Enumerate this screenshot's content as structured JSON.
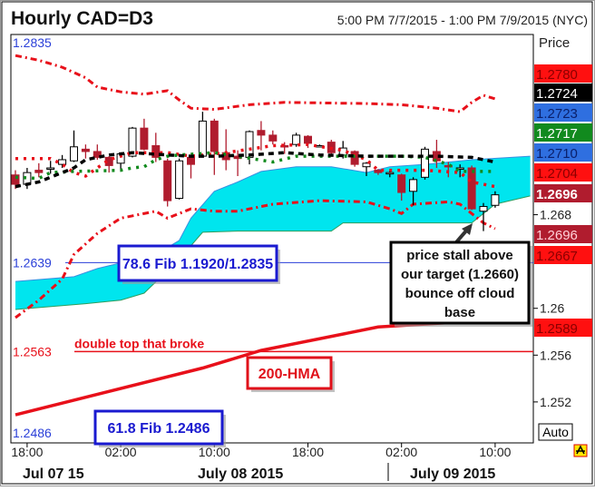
{
  "header": {
    "title": "Hourly CAD=D3",
    "range": "5:00 PM 7/7/2015 - 1:00 PM 7/9/2015 (NYC)",
    "price_label": "Price",
    "auto_button": "Auto"
  },
  "chart_data": {
    "type": "candlestick",
    "ylim": [
      1.2485,
      1.2834
    ],
    "xlim": [
      "7/7 17:00",
      "7/9 13:00"
    ],
    "yticks": [
      "1.268",
      "1.26",
      "1.256",
      "1.252"
    ],
    "xticks": [
      {
        "t": "7/7 18:00",
        "label": "18:00"
      },
      {
        "t": "7/8 02:00",
        "label": "02:00"
      },
      {
        "t": "7/8 10:00",
        "label": "10:00"
      },
      {
        "t": "7/8 18:00",
        "label": "18:00"
      },
      {
        "t": "7/9 02:00",
        "label": "02:00"
      },
      {
        "t": "7/9 10:00",
        "label": "10:00"
      }
    ],
    "date_labels": [
      "Jul 07 15",
      "July 08 2015",
      "July 09 2015"
    ],
    "colors": {
      "down": "#b01c2e",
      "up": "#ffffff",
      "cloud": "#00e5ee",
      "cloud_top": "#3a8fe0",
      "cloud_bottom": "#2e9e5e",
      "bollinger": "#e8101a",
      "hma": "#e8101a",
      "fib": "#2a3fd8"
    },
    "candles": [
      [
        "7/7 17:00",
        1.2714,
        1.2718,
        1.2702,
        1.2706
      ],
      [
        "7/7 18:00",
        1.2706,
        1.272,
        1.2702,
        1.2716
      ],
      [
        "7/7 19:00",
        1.2718,
        1.2724,
        1.2712,
        1.2716
      ],
      [
        "7/7 20:00",
        1.2719,
        1.2726,
        1.2715,
        1.272
      ],
      [
        "7/7 21:00",
        1.2723,
        1.2731,
        1.272,
        1.2727
      ],
      [
        "7/7 22:00",
        1.2726,
        1.2752,
        1.2725,
        1.2738
      ],
      [
        "7/7 23:00",
        1.2736,
        1.274,
        1.2728,
        1.2734
      ],
      [
        "7/8 00:00",
        1.2734,
        1.274,
        1.2727,
        1.2729
      ],
      [
        "7/8 01:00",
        1.2729,
        1.273,
        1.2716,
        1.2722
      ],
      [
        "7/8 02:00",
        1.2724,
        1.2733,
        1.2718,
        1.2732
      ],
      [
        "7/8 03:00",
        1.273,
        1.2755,
        1.2729,
        1.2754
      ],
      [
        "7/8 04:00",
        1.2754,
        1.2762,
        1.2735,
        1.2736
      ],
      [
        "7/8 05:00",
        1.2739,
        1.275,
        1.2725,
        1.2729
      ],
      [
        "7/8 06:00",
        1.2726,
        1.2728,
        1.2687,
        1.2692
      ],
      [
        "7/8 07:00",
        1.2694,
        1.2728,
        1.2693,
        1.2726
      ],
      [
        "7/8 08:00",
        1.2729,
        1.273,
        1.2711,
        1.2723
      ],
      [
        "7/8 09:00",
        1.273,
        1.2768,
        1.2729,
        1.276
      ],
      [
        "7/8 10:00",
        1.276,
        1.2762,
        1.2714,
        1.2734
      ],
      [
        "7/8 11:00",
        1.2733,
        1.2753,
        1.2718,
        1.2727
      ],
      [
        "7/8 12:00",
        1.273,
        1.2735,
        1.2713,
        1.2728
      ],
      [
        "7/8 13:00",
        1.2729,
        1.2752,
        1.2723,
        1.2751
      ],
      [
        "7/8 14:00",
        1.2752,
        1.276,
        1.2735,
        1.2748
      ],
      [
        "7/8 15:00",
        1.2748,
        1.2752,
        1.274,
        1.2743
      ],
      [
        "7/8 16:00",
        1.2739,
        1.2742,
        1.2732,
        1.2738
      ],
      [
        "7/8 17:00",
        1.274,
        1.275,
        1.2738,
        1.2748
      ],
      [
        "7/8 18:00",
        1.2747,
        1.2748,
        1.2737,
        1.2741
      ],
      [
        "7/8 19:00",
        1.2739,
        1.274,
        1.2738,
        1.2739
      ],
      [
        "7/8 20:00",
        1.2742,
        1.2744,
        1.273,
        1.2733
      ],
      [
        "7/8 21:00",
        1.2731,
        1.2743,
        1.2728,
        1.2737
      ],
      [
        "7/8 22:00",
        1.2734,
        1.2735,
        1.2721,
        1.2723
      ],
      [
        "7/8 23:00",
        1.2721,
        1.2725,
        1.2713,
        1.2724
      ],
      [
        "7/9 00:00",
        1.2718,
        1.2719,
        1.2714,
        1.2716
      ],
      [
        "7/9 01:00",
        1.2716,
        1.2718,
        1.2712,
        1.2716
      ],
      [
        "7/9 02:00",
        1.2714,
        1.2715,
        1.2692,
        1.2699
      ],
      [
        "7/9 03:00",
        1.27,
        1.2712,
        1.2688,
        1.271
      ],
      [
        "7/9 04:00",
        1.2712,
        1.2738,
        1.271,
        1.2736
      ],
      [
        "7/9 05:00",
        1.2734,
        1.2744,
        1.272,
        1.2726
      ],
      [
        "7/9 06:00",
        1.2722,
        1.2725,
        1.2712,
        1.2721
      ],
      [
        "7/9 07:00",
        1.272,
        1.2723,
        1.2712,
        1.272
      ],
      [
        "7/9 08:00",
        1.272,
        1.2722,
        1.2684,
        1.2685
      ],
      [
        "7/9 09:00",
        1.2683,
        1.269,
        1.2666,
        1.2687
      ],
      [
        "7/9 10:00",
        1.2688,
        1.27,
        1.2686,
        1.2697
      ]
    ],
    "cloud_top": [
      [
        "7/7 17:00",
        1.2623
      ],
      [
        "7/7 22:00",
        1.2627
      ],
      [
        "7/8 00:00",
        1.2634
      ],
      [
        "7/8 05:00",
        1.2646
      ],
      [
        "7/8 07:00",
        1.2658
      ],
      [
        "7/8 08:00",
        1.2677
      ],
      [
        "7/8 10:00",
        1.27
      ],
      [
        "7/8 12:00",
        1.2708
      ],
      [
        "7/8 14:00",
        1.2717
      ],
      [
        "7/8 17:00",
        1.2721
      ],
      [
        "7/8 20:00",
        1.2721
      ],
      [
        "7/8 23:00",
        1.2716
      ],
      [
        "7/9 01:00",
        1.2721
      ],
      [
        "7/9 04:00",
        1.2723
      ],
      [
        "7/9 08:00",
        1.2727
      ],
      [
        "7/9 13:00",
        1.273
      ]
    ],
    "cloud_bottom": [
      [
        "7/7 17:00",
        1.2599
      ],
      [
        "7/7 23:00",
        1.2604
      ],
      [
        "7/8 02:00",
        1.2607
      ],
      [
        "7/8 04:00",
        1.2613
      ],
      [
        "7/8 07:00",
        1.2642
      ],
      [
        "7/8 09:00",
        1.2665
      ],
      [
        "7/8 12:00",
        1.2666
      ],
      [
        "7/8 18:00",
        1.2666
      ],
      [
        "7/8 20:00",
        1.2666
      ],
      [
        "7/8 21:00",
        1.2673
      ],
      [
        "7/9 08:00",
        1.2673
      ],
      [
        "7/9 10:00",
        1.2689
      ],
      [
        "7/9 13:00",
        1.2696
      ]
    ],
    "bollinger_upper": [
      [
        "7/7 17:00",
        1.2816
      ],
      [
        "7/7 19:00",
        1.2812
      ],
      [
        "7/7 21:00",
        1.2806
      ],
      [
        "7/7 23:00",
        1.2797
      ],
      [
        "7/8 00:00",
        1.2789
      ],
      [
        "7/8 02:00",
        1.2785
      ],
      [
        "7/8 04:00",
        1.2783
      ],
      [
        "7/8 06:00",
        1.2786
      ],
      [
        "7/8 07:00",
        1.2778
      ],
      [
        "7/8 08:00",
        1.2771
      ],
      [
        "7/8 10:00",
        1.277
      ],
      [
        "7/8 13:00",
        1.2774
      ],
      [
        "7/8 16:00",
        1.2776
      ],
      [
        "7/8 23:00",
        1.2775
      ],
      [
        "7/9 02:00",
        1.2774
      ],
      [
        "7/9 05:00",
        1.2771
      ],
      [
        "7/9 07:00",
        1.2768
      ],
      [
        "7/9 08:00",
        1.2776
      ],
      [
        "7/9 09:00",
        1.2782
      ],
      [
        "7/9 10:00",
        1.2779
      ]
    ],
    "bollinger_lower": [
      [
        "7/7 17:00",
        1.2592
      ],
      [
        "7/7 19:00",
        1.2607
      ],
      [
        "7/7 21:00",
        1.2625
      ],
      [
        "7/7 22:00",
        1.2646
      ],
      [
        "7/8 00:00",
        1.2664
      ],
      [
        "7/8 02:00",
        1.2677
      ],
      [
        "7/8 05:00",
        1.2683
      ],
      [
        "7/8 06:00",
        1.2677
      ],
      [
        "7/8 08:00",
        1.2685
      ],
      [
        "7/8 10:00",
        1.2683
      ],
      [
        "7/8 12:00",
        1.2683
      ],
      [
        "7/8 15:00",
        1.2689
      ],
      [
        "7/8 19:00",
        1.2692
      ],
      [
        "7/8 23:00",
        1.2691
      ],
      [
        "7/9 01:00",
        1.2685
      ],
      [
        "7/9 02:00",
        1.2681
      ],
      [
        "7/9 03:00",
        1.2689
      ],
      [
        "7/9 06:00",
        1.2691
      ],
      [
        "7/9 07:00",
        1.2689
      ],
      [
        "7/9 08:00",
        1.2681
      ],
      [
        "7/9 09:00",
        1.2673
      ],
      [
        "7/9 10:00",
        1.2668
      ]
    ],
    "black_dashed": [
      [
        "7/7 17:00",
        1.2704
      ],
      [
        "7/7 19:00",
        1.2708
      ],
      [
        "7/7 20:00",
        1.2712
      ],
      [
        "7/7 22:00",
        1.272
      ],
      [
        "7/7 23:00",
        1.2727
      ],
      [
        "7/8 01:00",
        1.2731
      ],
      [
        "7/8 03:00",
        1.2733
      ],
      [
        "7/8 06:00",
        1.2731
      ],
      [
        "7/8 08:00",
        1.273
      ],
      [
        "7/8 10:00",
        1.273
      ],
      [
        "7/8 13:00",
        1.2731
      ],
      [
        "7/8 16:00",
        1.2733
      ],
      [
        "7/8 19:00",
        1.2731
      ],
      [
        "7/8 23:00",
        1.273
      ],
      [
        "7/9 02:00",
        1.273
      ],
      [
        "7/9 05:00",
        1.273
      ],
      [
        "7/9 08:00",
        1.2729
      ],
      [
        "7/9 10:00",
        1.2725
      ]
    ],
    "green_dotted": [
      [
        "7/7 17:00",
        1.2712
      ],
      [
        "7/7 19:00",
        1.2711
      ],
      [
        "7/7 20:00",
        1.2716
      ],
      [
        "7/7 22:00",
        1.2717
      ],
      [
        "7/8 02:00",
        1.2718
      ],
      [
        "7/8 03:00",
        1.272
      ],
      [
        "7/8 04:00",
        1.2721
      ],
      [
        "7/8 05:00",
        1.2727
      ],
      [
        "7/8 06:00",
        1.273
      ],
      [
        "7/8 07:00",
        1.2731
      ],
      [
        "7/8 10:00",
        1.2733
      ],
      [
        "7/8 15:00",
        1.2725
      ],
      [
        "7/8 17:00",
        1.273
      ],
      [
        "7/8 20:00",
        1.273
      ],
      [
        "7/8 23:00",
        1.273
      ],
      [
        "7/9 02:00",
        1.273
      ],
      [
        "7/9 04:00",
        1.2729
      ],
      [
        "7/9 06:00",
        1.2723
      ],
      [
        "7/9 07:00",
        1.2717
      ],
      [
        "7/9 10:00",
        1.2717
      ]
    ],
    "red_dotted": [
      [
        "7/7 17:00",
        1.2728
      ],
      [
        "7/7 20:00",
        1.2728
      ],
      [
        "7/7 21:00",
        1.2723
      ],
      [
        "7/7 22:00",
        1.2716
      ],
      [
        "7/7 23:00",
        1.2713
      ],
      [
        "7/8 00:00",
        1.272
      ],
      [
        "7/8 01:00",
        1.2727
      ],
      [
        "7/8 03:00",
        1.2733
      ],
      [
        "7/8 06:00",
        1.2733
      ],
      [
        "7/8 08:00",
        1.273
      ],
      [
        "7/8 11:00",
        1.2733
      ],
      [
        "7/8 15:00",
        1.2739
      ],
      [
        "7/8 18:00",
        1.274
      ],
      [
        "7/8 21:00",
        1.2735
      ],
      [
        "7/8 23:00",
        1.2727
      ],
      [
        "7/9 00:00",
        1.2718
      ],
      [
        "7/9 04:00",
        1.2718
      ],
      [
        "7/9 07:00",
        1.2716
      ],
      [
        "7/9 08:00",
        1.2708
      ],
      [
        "7/9 10:00",
        1.2704
      ]
    ],
    "hma_200": [
      [
        "7/7 17:00",
        1.2509
      ],
      [
        "7/8 09:00",
        1.2549
      ],
      [
        "7/8 14:00",
        1.2564
      ],
      [
        "7/9 00:00",
        1.2584
      ],
      [
        "7/9 13:00",
        1.2592
      ]
    ],
    "levels": [
      {
        "value": 1.2835,
        "label": "1.2835",
        "color": "#2a3fd8"
      },
      {
        "value": 1.2639,
        "label": "1.2639",
        "color": "#2a3fd8"
      },
      {
        "value": 1.2563,
        "label": "1.2563",
        "color": "#e8101a",
        "note": "double top that broke"
      },
      {
        "value": 1.2486,
        "label": "1.2486",
        "color": "#2a3fd8"
      }
    ],
    "price_tags": [
      {
        "value": "1.2780",
        "bg": "#ff1010",
        "fg": "#8a0000",
        "bold": false
      },
      {
        "value": "1.2724",
        "bg": "#000000",
        "fg": "#ffffff",
        "bold": false
      },
      {
        "value": "1.2723",
        "bg": "#2f6fe0",
        "fg": "#0a1f6a",
        "bold": false
      },
      {
        "value": "1.2717",
        "bg": "#118a1e",
        "fg": "#ffffff",
        "bold": false
      },
      {
        "value": "1.2710",
        "bg": "#2f6fe0",
        "fg": "#0a1f6a",
        "bold": false
      },
      {
        "value": "1.2704",
        "bg": "#ff1010",
        "fg": "#8a0000",
        "bold": false
      },
      {
        "value": "1.2696",
        "bg": "#b01c2e",
        "fg": "#ffffff",
        "bold": true
      },
      {
        "value": "1.2696",
        "bg": "#b01c2e",
        "fg": "#ffd0d8",
        "bold": false
      },
      {
        "value": "1.2667",
        "bg": "#ff1010",
        "fg": "#8a0000",
        "bold": false
      },
      {
        "value": "1.2589",
        "bg": "#ff1010",
        "fg": "#8a0000",
        "bold": false
      }
    ],
    "annotations": {
      "fib786": "78.6 Fib 1.1920/1.2835",
      "fib618": "61.8 Fib 1.2486",
      "hma": "200-HMA",
      "callout": [
        "price stall above",
        "our target (1.2660)",
        "bounce off cloud",
        "base"
      ]
    }
  }
}
